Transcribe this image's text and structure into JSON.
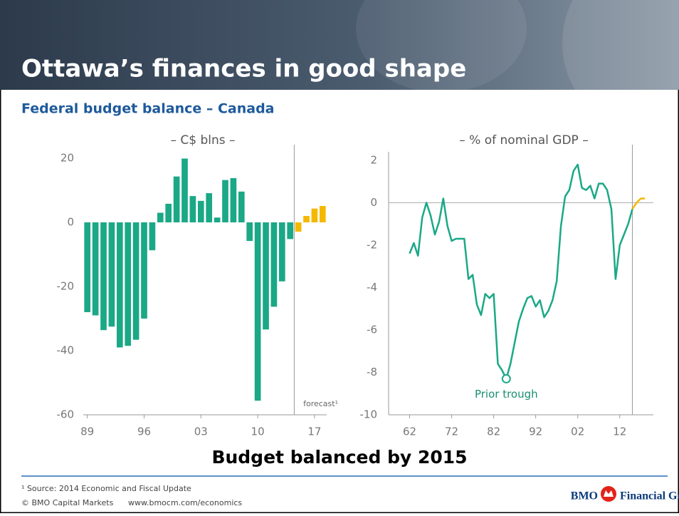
{
  "header": {
    "title": "Ottawa’s finances in good shape"
  },
  "subtitle": "Federal budget balance – Canada",
  "chart_data": [
    {
      "type": "bar",
      "subtitle": "– C$ blns –",
      "categories": [
        "89",
        null,
        null,
        null,
        null,
        null,
        null,
        "96",
        null,
        null,
        null,
        null,
        null,
        null,
        "03",
        null,
        null,
        null,
        null,
        null,
        null,
        "10",
        null,
        null,
        null,
        null,
        null,
        null,
        "17",
        null
      ],
      "values": [
        -28,
        -29,
        -33.6,
        -32.5,
        -39,
        -38.5,
        -36.6,
        -30,
        -8.7,
        3,
        5.8,
        14.3,
        19.9,
        8.2,
        6.7,
        9.1,
        1.5,
        13.2,
        13.8,
        9.6,
        -5.8,
        -55.6,
        -33.4,
        -26.3,
        -18.4,
        -5.2,
        -2.9,
        2,
        4.3,
        5.1
      ],
      "colors": [
        "#1aa886",
        "#1aa886",
        "#1aa886",
        "#1aa886",
        "#1aa886",
        "#1aa886",
        "#1aa886",
        "#1aa886",
        "#1aa886",
        "#1aa886",
        "#1aa886",
        "#1aa886",
        "#1aa886",
        "#1aa886",
        "#1aa886",
        "#1aa886",
        "#1aa886",
        "#1aa886",
        "#1aa886",
        "#1aa886",
        "#1aa886",
        "#1aa886",
        "#1aa886",
        "#1aa886",
        "#1aa886",
        "#1aa886",
        "#f5b800",
        "#f5b800",
        "#f5b800",
        "#f5b800"
      ],
      "ylim": [
        -60,
        22
      ],
      "yticks": [
        20,
        0,
        -20,
        -40,
        -60
      ],
      "annotation": "forecast¹"
    },
    {
      "type": "line",
      "subtitle": "– % of nominal GDP –",
      "x": [
        1962,
        1963,
        1964,
        1965,
        1966,
        1967,
        1968,
        1969,
        1970,
        1971,
        1972,
        1973,
        1974,
        1975,
        1976,
        1977,
        1978,
        1979,
        1980,
        1981,
        1982,
        1983,
        1984,
        1985,
        1986,
        1987,
        1988,
        1989,
        1990,
        1991,
        1992,
        1993,
        1994,
        1995,
        1996,
        1997,
        1998,
        1999,
        2000,
        2001,
        2002,
        2003,
        2004,
        2005,
        2006,
        2007,
        2008,
        2009,
        2010,
        2011,
        2012,
        2013,
        2014,
        2015,
        2016,
        2017,
        2018
      ],
      "series": [
        {
          "color": "#1aa886",
          "values": [
            -2.4,
            -1.9,
            -2.5,
            -0.7,
            0.0,
            -0.6,
            -1.5,
            -0.9,
            0.2,
            -1.1,
            -1.8,
            -1.7,
            -1.7,
            -1.7,
            -3.6,
            -3.4,
            -4.8,
            -5.3,
            -4.3,
            -4.5,
            -4.3,
            -7.6,
            -7.9,
            -8.3,
            -7.6,
            -6.6,
            -5.6,
            -5.0,
            -4.5,
            -4.4,
            -4.9,
            -4.6,
            -5.4,
            -5.1,
            -4.6,
            -3.7,
            -1.1,
            0.3,
            0.6,
            1.5,
            1.8,
            0.7,
            0.6,
            0.8,
            0.2,
            0.9,
            0.9,
            0.6,
            -0.3,
            -3.6,
            -2.0,
            -1.5,
            -1.0,
            -0.3,
            null,
            null,
            null
          ]
        },
        {
          "color": "#f5b800",
          "values": [
            null,
            null,
            null,
            null,
            null,
            null,
            null,
            null,
            null,
            null,
            null,
            null,
            null,
            null,
            null,
            null,
            null,
            null,
            null,
            null,
            null,
            null,
            null,
            null,
            null,
            null,
            null,
            null,
            null,
            null,
            null,
            null,
            null,
            null,
            null,
            null,
            null,
            null,
            null,
            null,
            null,
            null,
            null,
            null,
            null,
            null,
            null,
            null,
            null,
            null,
            null,
            null,
            null,
            -0.3,
            0.0,
            0.2,
            0.2
          ]
        }
      ],
      "xlim": [
        1957,
        2020
      ],
      "xticks": [
        {
          "value": 1962,
          "label": "62"
        },
        {
          "value": 1972,
          "label": "72"
        },
        {
          "value": 1982,
          "label": "82"
        },
        {
          "value": 1992,
          "label": "92"
        },
        {
          "value": 2002,
          "label": "02"
        },
        {
          "value": 2012,
          "label": "12"
        }
      ],
      "ylim": [
        -10,
        2.4
      ],
      "yticks": [
        2,
        0,
        -2,
        -4,
        -6,
        -8,
        -10
      ],
      "zero_line": true,
      "annotation": {
        "text": "Prior trough",
        "index": 23
      }
    }
  ],
  "conclusion": "Budget balanced by 2015",
  "footer": {
    "source": "¹ Source: 2014 Economic and Fiscal Update",
    "copyright": "© BMO Capital Markets",
    "url": "www.bmocm.com/economics",
    "logo_left": "BMO",
    "logo_right": "Financial Group"
  }
}
